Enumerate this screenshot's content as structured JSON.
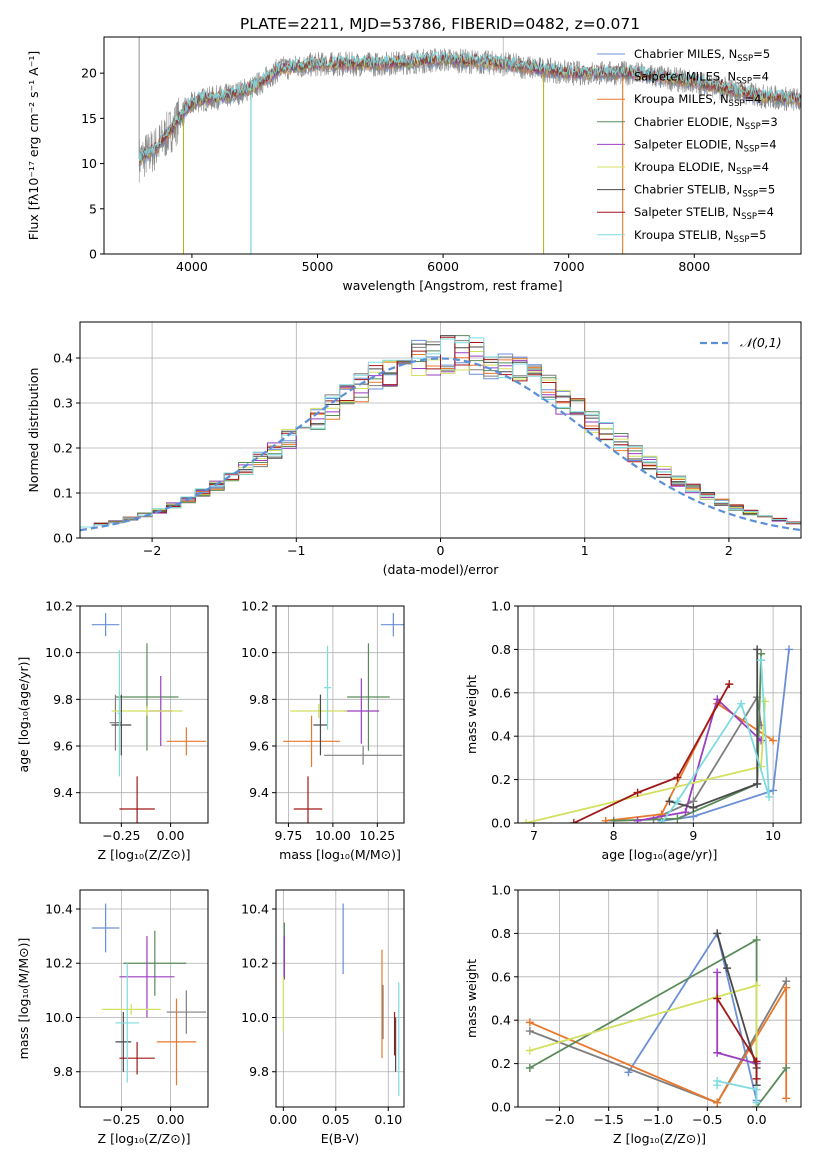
{
  "figure_title": "PLATE=2211, MJD=53786, FIBERID=0482, z=0.071",
  "series_colors": [
    "#6b8fd6",
    "#7f7f7f",
    "#e8782c",
    "#5a8a5a",
    "#9b3fc0",
    "#d4e060",
    "#4a4a4a",
    "#a01818",
    "#7fdbe0"
  ],
  "legend_entries": [
    {
      "lib": "Chabrier MILES",
      "n": "5"
    },
    {
      "lib": "Salpeter MILES",
      "n": "4"
    },
    {
      "lib": "Kroupa MILES",
      "n": "4"
    },
    {
      "lib": "Chabrier ELODIE",
      "n": "3"
    },
    {
      "lib": "Salpeter ELODIE",
      "n": "4"
    },
    {
      "lib": "Kroupa ELODIE",
      "n": "4"
    },
    {
      "lib": "Chabrier STELIB",
      "n": "5"
    },
    {
      "lib": "Salpeter STELIB",
      "n": "4"
    },
    {
      "lib": "Kroupa STELIB",
      "n": "5"
    }
  ],
  "chart_data": [
    {
      "id": "spectrum",
      "type": "line",
      "xlabel": "wavelength [Angstrom, rest frame]",
      "ylabel": "Flux [fλ10⁻¹⁷ erg cm⁻² s⁻¹ A⁻¹]",
      "xlim": [
        3300,
        8850
      ],
      "ylim": [
        0,
        24
      ],
      "xticks": [
        4000,
        5000,
        6000,
        7000,
        8000
      ],
      "yticks": [
        0,
        5,
        10,
        15,
        20
      ],
      "continuum": [
        [
          3580,
          10.5
        ],
        [
          3700,
          11.5
        ],
        [
          3850,
          14
        ],
        [
          3950,
          16
        ],
        [
          4050,
          17
        ],
        [
          4300,
          17.5
        ],
        [
          4500,
          18.5
        ],
        [
          4700,
          20.5
        ],
        [
          5000,
          21
        ],
        [
          5500,
          21
        ],
        [
          6000,
          21.5
        ],
        [
          6500,
          21
        ],
        [
          7000,
          20
        ],
        [
          7500,
          20
        ],
        [
          8000,
          19
        ],
        [
          8500,
          17.5
        ],
        [
          8850,
          17
        ]
      ]
    },
    {
      "id": "residuals",
      "type": "step",
      "xlabel": "(data-model)/error",
      "ylabel": "Normed distribution",
      "xlim": [
        -2.5,
        2.5
      ],
      "ylim": [
        0,
        0.48
      ],
      "xticks": [
        -2,
        -1,
        0,
        1,
        2
      ],
      "yticks": [
        0,
        0.1,
        0.2,
        0.3,
        0.4
      ],
      "legend": "𝒩(0,1)"
    },
    {
      "id": "age_vs_Z",
      "type": "errorbar",
      "xlabel": "Z [log₁₀(Z/Z⊙)]",
      "ylabel": "age  [log₁₀(age/yr)]",
      "xlim": [
        -0.46,
        0.19
      ],
      "ylim": [
        9.27,
        10.2
      ],
      "xticks": [
        -0.25,
        0.0
      ],
      "yticks": [
        9.4,
        9.6,
        9.8,
        10.0,
        10.2
      ],
      "points": [
        {
          "x": -0.33,
          "y": 10.12,
          "xe": 0.07,
          "ye": 0.05
        },
        {
          "x": -0.28,
          "y": 9.7,
          "xe": 0.03,
          "ye": 0.12
        },
        {
          "x": 0.08,
          "y": 9.62,
          "xe": 0.1,
          "ye": 0.06
        },
        {
          "x": -0.12,
          "y": 9.81,
          "xe": 0.16,
          "ye": 0.23
        },
        {
          "x": -0.05,
          "y": 9.75,
          "xe": 0.06,
          "ye": 0.15
        },
        {
          "x": -0.12,
          "y": 9.75,
          "xe": 0.18,
          "ye": 0.02
        },
        {
          "x": -0.25,
          "y": 9.69,
          "xe": 0.05,
          "ye": 0.13
        },
        {
          "x": -0.17,
          "y": 9.33,
          "xe": 0.09,
          "ye": 0.14
        },
        {
          "x": -0.26,
          "y": 9.74,
          "xe": 0.01,
          "ye": 0.27
        }
      ]
    },
    {
      "id": "age_vs_mass",
      "type": "errorbar",
      "xlabel": "mass [log₁₀(M/M⊙)]",
      "ylabel": "",
      "xlim": [
        9.68,
        10.4
      ],
      "ylim": [
        9.27,
        10.2
      ],
      "xticks": [
        9.75,
        10.0,
        10.25
      ],
      "yticks": [
        9.4,
        9.6,
        9.8,
        10.0,
        10.2
      ],
      "points": [
        {
          "x": 10.34,
          "y": 10.12,
          "xe": 0.07,
          "ye": 0.05
        },
        {
          "x": 10.17,
          "y": 9.56,
          "xe": 0.22,
          "ye": 0.04
        },
        {
          "x": 9.88,
          "y": 9.62,
          "xe": 0.16,
          "ye": 0.11
        },
        {
          "x": 10.2,
          "y": 9.81,
          "xe": 0.12,
          "ye": 0.23
        },
        {
          "x": 10.16,
          "y": 9.75,
          "xe": 0.1,
          "ye": 0.14
        },
        {
          "x": 9.92,
          "y": 9.75,
          "xe": 0.16,
          "ye": 0.03
        },
        {
          "x": 9.93,
          "y": 9.69,
          "xe": 0.04,
          "ye": 0.13
        },
        {
          "x": 9.86,
          "y": 9.33,
          "xe": 0.08,
          "ye": 0.14
        },
        {
          "x": 9.97,
          "y": 9.85,
          "xe": 0.02,
          "ye": 0.18
        }
      ]
    },
    {
      "id": "weight_vs_age",
      "type": "line",
      "xlabel": "age  [log₁₀(age/yr)]",
      "ylabel": "mass weight",
      "xlim": [
        6.8,
        10.35
      ],
      "ylim": [
        0,
        1.0
      ],
      "xticks": [
        7,
        8,
        9,
        10
      ],
      "yticks": [
        0.0,
        0.2,
        0.4,
        0.6,
        0.8,
        1.0
      ],
      "series": [
        {
          "points": [
            [
              8.6,
              0.01
            ],
            [
              9.0,
              0.03
            ],
            [
              10.0,
              0.15
            ],
            [
              10.2,
              0.8
            ]
          ]
        },
        {
          "points": [
            [
              8.5,
              0.02
            ],
            [
              9.0,
              0.1
            ],
            [
              9.8,
              0.58
            ],
            [
              9.85,
              0.45
            ]
          ]
        },
        {
          "points": [
            [
              7.9,
              0.01
            ],
            [
              8.6,
              0.04
            ],
            [
              9.3,
              0.55
            ],
            [
              10.0,
              0.38
            ]
          ]
        },
        {
          "points": [
            [
              8.0,
              0.01
            ],
            [
              8.8,
              0.02
            ],
            [
              9.8,
              0.18
            ],
            [
              9.85,
              0.78
            ]
          ]
        },
        {
          "points": [
            [
              8.3,
              0.01
            ],
            [
              8.9,
              0.05
            ],
            [
              9.3,
              0.57
            ],
            [
              9.85,
              0.38
            ]
          ]
        },
        {
          "points": [
            [
              6.9,
              0.0
            ],
            [
              9.85,
              0.26
            ],
            [
              9.9,
              0.56
            ]
          ]
        },
        {
          "points": [
            [
              8.7,
              0.1
            ],
            [
              9.0,
              0.07
            ],
            [
              9.8,
              0.18
            ],
            [
              9.8,
              0.8
            ]
          ]
        },
        {
          "points": [
            [
              7.5,
              0.0
            ],
            [
              8.3,
              0.14
            ],
            [
              8.8,
              0.21
            ],
            [
              9.45,
              0.64
            ]
          ]
        },
        {
          "points": [
            [
              8.6,
              0.0
            ],
            [
              8.8,
              0.1
            ],
            [
              9.6,
              0.55
            ],
            [
              9.95,
              0.12
            ],
            [
              9.85,
              0.75
            ]
          ]
        }
      ]
    },
    {
      "id": "mass_vs_Z",
      "type": "errorbar",
      "xlabel": "Z [log₁₀(Z/Z⊙)]",
      "ylabel": "mass [log₁₀(M/M⊙)]",
      "xlim": [
        -0.46,
        0.19
      ],
      "ylim": [
        9.67,
        10.47
      ],
      "xticks": [
        -0.25,
        0.0
      ],
      "yticks": [
        9.8,
        10.0,
        10.2,
        10.4
      ],
      "points": [
        {
          "x": -0.33,
          "y": 10.33,
          "xe": 0.07,
          "ye": 0.09
        },
        {
          "x": 0.08,
          "y": 10.02,
          "xe": 0.1,
          "ye": 0.08
        },
        {
          "x": 0.03,
          "y": 9.91,
          "xe": 0.1,
          "ye": 0.16
        },
        {
          "x": -0.08,
          "y": 10.2,
          "xe": 0.16,
          "ye": 0.12
        },
        {
          "x": -0.12,
          "y": 10.15,
          "xe": 0.14,
          "ye": 0.15
        },
        {
          "x": -0.2,
          "y": 10.03,
          "xe": 0.15,
          "ye": 0.02
        },
        {
          "x": -0.24,
          "y": 9.91,
          "xe": 0.04,
          "ye": 0.11
        },
        {
          "x": -0.17,
          "y": 9.85,
          "xe": 0.09,
          "ye": 0.06
        },
        {
          "x": -0.22,
          "y": 9.98,
          "xe": 0.06,
          "ye": 0.22
        }
      ]
    },
    {
      "id": "mass_vs_EBV",
      "type": "errorbar",
      "xlabel": "E(B-V)",
      "ylabel": "",
      "xlim": [
        -0.007,
        0.115
      ],
      "ylim": [
        9.67,
        10.47
      ],
      "xticks": [
        0.0,
        0.05,
        0.1
      ],
      "yticks": [
        9.8,
        10.0,
        10.2,
        10.4
      ],
      "points": [
        {
          "x": 0.057,
          "y": 10.29,
          "xe": 0,
          "ye": 0.13
        },
        {
          "x": 0.095,
          "y": 10.02,
          "xe": 0,
          "ye": 0.1
        },
        {
          "x": 0.094,
          "y": 10.05,
          "xe": 0,
          "ye": 0.2
        },
        {
          "x": 0.001,
          "y": 10.25,
          "xe": 0,
          "ye": 0.1
        },
        {
          "x": 0.001,
          "y": 10.22,
          "xe": 0,
          "ye": 0.08
        },
        {
          "x": 0.0,
          "y": 10.05,
          "xe": 0,
          "ye": 0.1
        },
        {
          "x": 0.107,
          "y": 9.9,
          "xe": 0,
          "ye": 0.1
        },
        {
          "x": 0.106,
          "y": 9.94,
          "xe": 0,
          "ye": 0.08
        },
        {
          "x": 0.11,
          "y": 9.92,
          "xe": 0,
          "ye": 0.21
        }
      ]
    },
    {
      "id": "weight_vs_Z",
      "type": "line",
      "xlabel": "Z [log₁₀(Z/Z⊙)]",
      "ylabel": "mass weight",
      "xlim": [
        -2.42,
        0.45
      ],
      "ylim": [
        0,
        1.0
      ],
      "xticks": [
        -2.0,
        -1.5,
        -1.0,
        -0.5,
        0.0
      ],
      "yticks": [
        0.0,
        0.2,
        0.4,
        0.6,
        0.8,
        1.0
      ],
      "series": [
        {
          "points": [
            [
              -1.3,
              0.16
            ],
            [
              -0.4,
              0.8
            ],
            [
              0.0,
              0.03
            ],
            [
              0.0,
              0.1
            ]
          ]
        },
        {
          "points": [
            [
              -2.3,
              0.35
            ],
            [
              -0.4,
              0.02
            ],
            [
              0.3,
              0.58
            ]
          ]
        },
        {
          "points": [
            [
              -2.3,
              0.39
            ],
            [
              -0.4,
              0.02
            ],
            [
              0.3,
              0.55
            ],
            [
              0.3,
              0.04
            ]
          ]
        },
        {
          "points": [
            [
              -2.3,
              0.18
            ],
            [
              0.0,
              0.77
            ],
            [
              0.0,
              0.0
            ],
            [
              0.3,
              0.18
            ]
          ]
        },
        {
          "points": [
            [
              -0.4,
              0.62
            ],
            [
              -0.4,
              0.25
            ],
            [
              0.0,
              0.2
            ]
          ]
        },
        {
          "points": [
            [
              -2.3,
              0.26
            ],
            [
              0.0,
              0.56
            ],
            [
              0.0,
              0.0
            ]
          ]
        },
        {
          "points": [
            [
              -0.4,
              0.8
            ],
            [
              -0.3,
              0.64
            ],
            [
              0.0,
              0.18
            ],
            [
              0.0,
              0.1
            ]
          ]
        },
        {
          "points": [
            [
              -0.4,
              0.5
            ],
            [
              0.0,
              0.21
            ],
            [
              0.0,
              0.13
            ]
          ]
        },
        {
          "points": [
            [
              -0.4,
              0.1
            ],
            [
              -0.4,
              0.12
            ],
            [
              0.0,
              0.08
            ],
            [
              0.0,
              0.02
            ]
          ]
        }
      ]
    }
  ]
}
